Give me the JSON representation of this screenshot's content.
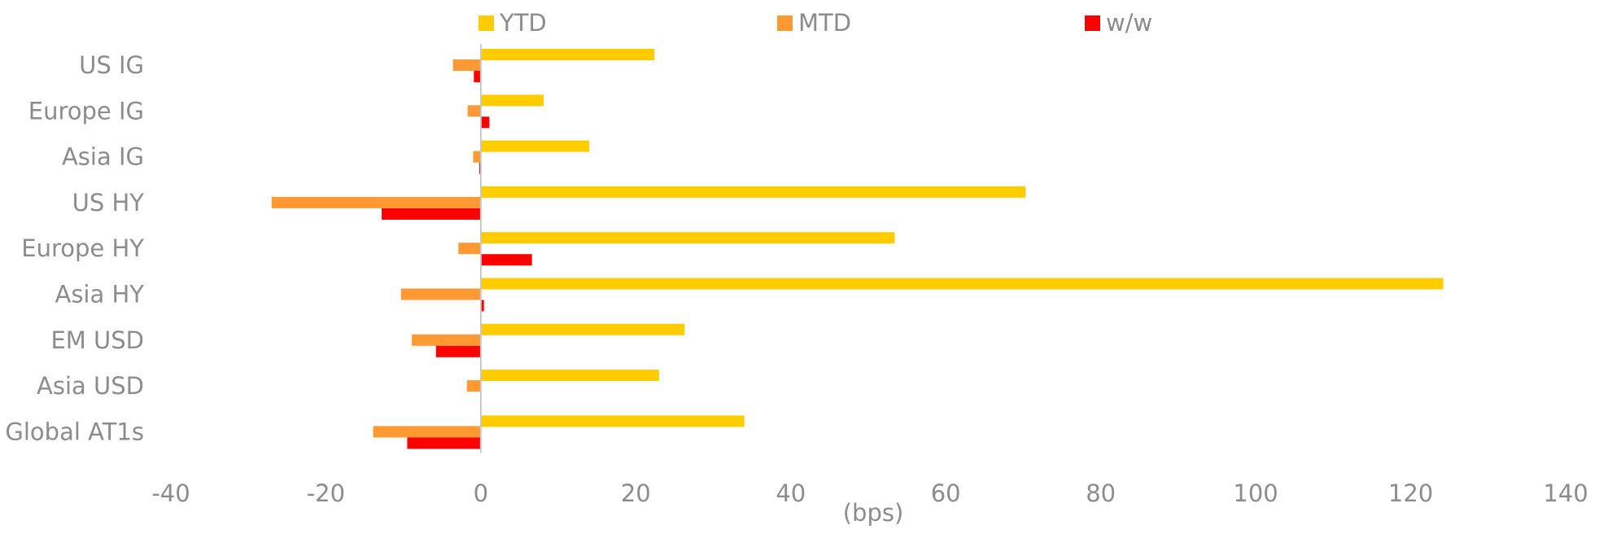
{
  "chart_data": {
    "type": "bar",
    "orientation": "horizontal",
    "categories": [
      "US IG",
      "Europe IG",
      "Asia IG",
      "US HY",
      "Europe HY",
      "Asia HY",
      "EM USD",
      "Asia USD",
      "Global AT1s"
    ],
    "series": [
      {
        "name": "YTD",
        "color": "#FFCC00",
        "values": [
          22.4,
          8.1,
          14.0,
          70.3,
          53.4,
          124.2,
          26.3,
          23.0,
          34.0
        ]
      },
      {
        "name": "MTD",
        "color": "#FF9933",
        "values": [
          -3.6,
          -1.7,
          -1.0,
          -27.0,
          -2.9,
          -10.3,
          -8.9,
          -1.8,
          -13.9
        ]
      },
      {
        "name": "w/w",
        "color": "#FF0000",
        "values": [
          -0.9,
          1.1,
          -0.2,
          -12.8,
          6.6,
          0.4,
          -5.8,
          0,
          -9.5
        ]
      }
    ],
    "xlabel": "(bps)",
    "xlim": [
      -40,
      140
    ],
    "xticks": [
      -40,
      -20,
      0,
      20,
      40,
      60,
      80,
      100,
      120,
      140
    ],
    "grid": false,
    "legend_position": "top"
  }
}
